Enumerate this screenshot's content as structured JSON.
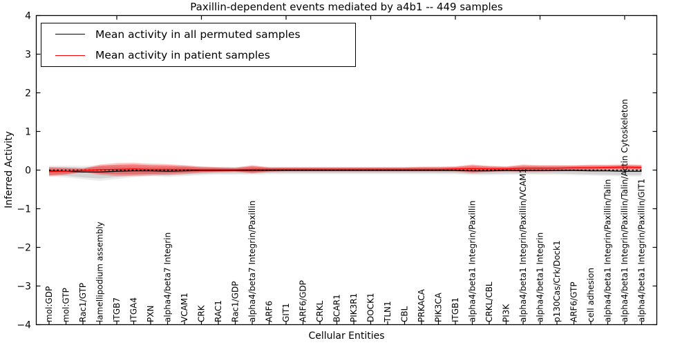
{
  "figure": {
    "title": "Paxillin-dependent events mediated by a4b1 -- 449 samples",
    "background": "#ffffff",
    "frame_color": "#000000"
  },
  "legend": {
    "items": [
      {
        "label": "Mean activity in all permuted samples",
        "color": "#000000"
      },
      {
        "label": "Mean activity in patient samples",
        "color": "#ff0000"
      }
    ]
  },
  "chart_data": {
    "type": "line",
    "title": "Paxillin-dependent events mediated by a4b1 -- 449 samples",
    "xlabel": "Cellular Entities",
    "ylabel": "Inferred Activity",
    "ylim": [
      -4,
      4
    ],
    "yticks": [
      -4,
      -3,
      -2,
      -1,
      0,
      1,
      2,
      3,
      4
    ],
    "grid": false,
    "legend_position": "upper left",
    "zero_reference_line": {
      "style": "dotted",
      "color": "#000000",
      "y": 0
    },
    "top_tick_indices": [
      4,
      9,
      14,
      19,
      24,
      29,
      34
    ],
    "categories": [
      "mol:GDP",
      "mol:GTP",
      "Rac1/GTP",
      "lamellipodium assembly",
      "ITGB7",
      "ITGA4",
      "PXN",
      "alpha4/beta7 Integrin",
      "VCAM1",
      "CRK",
      "RAC1",
      "Rac1/GDP",
      "alpha4/beta7 Integrin/Paxillin",
      "ARF6",
      "GIT1",
      "ARF6/GDP",
      "CRKL",
      "BCAR1",
      "PIK3R1",
      "DOCK1",
      "TLN1",
      "CBL",
      "PRKACA",
      "PIK3CA",
      "ITGB1",
      "alpha4/beta1 Integrin/Paxillin",
      "CRKL/CBL",
      "PI3K",
      "alpha4/beta1 Integrin/Paxillin/VCAM1",
      "alpha4/beta1 Integrin",
      "p130Cas/Crk/Dock1",
      "ARF6/GTP",
      "cell adhesion",
      "alpha4/beta1 Integrin/Paxillin/Talin",
      "alpha4/beta1 Integrin/Paxillin/Talin/Actin Cytoskeleton",
      "alpha4/beta1 Integrin/Paxillin/GIT1"
    ],
    "series": [
      {
        "name": "Mean activity in all permuted samples",
        "color": "#000000",
        "band_fill": "rgba(0,0,0,0.11)",
        "band_fill_outer": "rgba(0,0,0,0.07)",
        "values": [
          -0.02,
          -0.03,
          -0.05,
          -0.05,
          -0.03,
          -0.02,
          -0.02,
          -0.03,
          -0.02,
          -0.01,
          -0.01,
          -0.01,
          -0.01,
          -0.01,
          -0.01,
          -0.01,
          -0.01,
          -0.01,
          -0.01,
          -0.01,
          -0.01,
          -0.01,
          -0.01,
          -0.01,
          -0.01,
          -0.02,
          -0.02,
          -0.01,
          -0.01,
          -0.01,
          -0.01,
          -0.01,
          -0.02,
          -0.02,
          -0.03,
          -0.03
        ],
        "band_lo": [
          -0.13,
          -0.15,
          -0.19,
          -0.22,
          -0.18,
          -0.14,
          -0.12,
          -0.14,
          -0.12,
          -0.1,
          -0.09,
          -0.09,
          -0.09,
          -0.08,
          -0.08,
          -0.08,
          -0.08,
          -0.08,
          -0.08,
          -0.08,
          -0.08,
          -0.08,
          -0.08,
          -0.08,
          -0.08,
          -0.1,
          -0.1,
          -0.09,
          -0.09,
          -0.09,
          -0.09,
          -0.1,
          -0.11,
          -0.12,
          -0.13,
          -0.13
        ],
        "band_hi": [
          0.08,
          0.08,
          0.07,
          0.08,
          0.09,
          0.09,
          0.08,
          0.08,
          0.08,
          0.07,
          0.06,
          0.06,
          0.07,
          0.06,
          0.06,
          0.06,
          0.06,
          0.06,
          0.06,
          0.06,
          0.06,
          0.06,
          0.06,
          0.06,
          0.06,
          0.07,
          0.07,
          0.06,
          0.07,
          0.07,
          0.07,
          0.07,
          0.07,
          0.07,
          0.06,
          0.06
        ]
      },
      {
        "name": "Mean activity in patient samples",
        "color": "#ff0000",
        "band_fill": "rgba(255,0,0,0.33)",
        "band_fill_outer": "rgba(255,0,0,0.22)",
        "values": [
          -0.04,
          -0.03,
          -0.01,
          0.01,
          0.02,
          0.03,
          0.02,
          0.02,
          0.02,
          0.01,
          0.01,
          0.01,
          0.02,
          0.02,
          0.02,
          0.02,
          0.02,
          0.02,
          0.02,
          0.02,
          0.02,
          0.02,
          0.02,
          0.02,
          0.03,
          0.04,
          0.03,
          0.03,
          0.05,
          0.05,
          0.05,
          0.06,
          0.06,
          0.07,
          0.08,
          0.07
        ],
        "band_lo": [
          -0.13,
          -0.1,
          -0.04,
          -0.09,
          -0.11,
          -0.11,
          -0.1,
          -0.09,
          -0.07,
          -0.05,
          -0.04,
          -0.03,
          -0.06,
          -0.03,
          -0.02,
          -0.02,
          -0.02,
          -0.02,
          -0.02,
          -0.02,
          -0.02,
          -0.02,
          -0.02,
          -0.02,
          -0.02,
          -0.05,
          -0.03,
          -0.02,
          -0.03,
          -0.02,
          -0.01,
          0.0,
          0.01,
          0.02,
          0.03,
          0.02
        ],
        "band_hi": [
          0.05,
          0.04,
          0.03,
          0.11,
          0.14,
          0.15,
          0.13,
          0.12,
          0.1,
          0.07,
          0.06,
          0.05,
          0.1,
          0.06,
          0.06,
          0.06,
          0.06,
          0.06,
          0.06,
          0.06,
          0.06,
          0.06,
          0.07,
          0.07,
          0.08,
          0.12,
          0.09,
          0.08,
          0.12,
          0.11,
          0.11,
          0.11,
          0.12,
          0.12,
          0.13,
          0.12
        ]
      }
    ]
  }
}
